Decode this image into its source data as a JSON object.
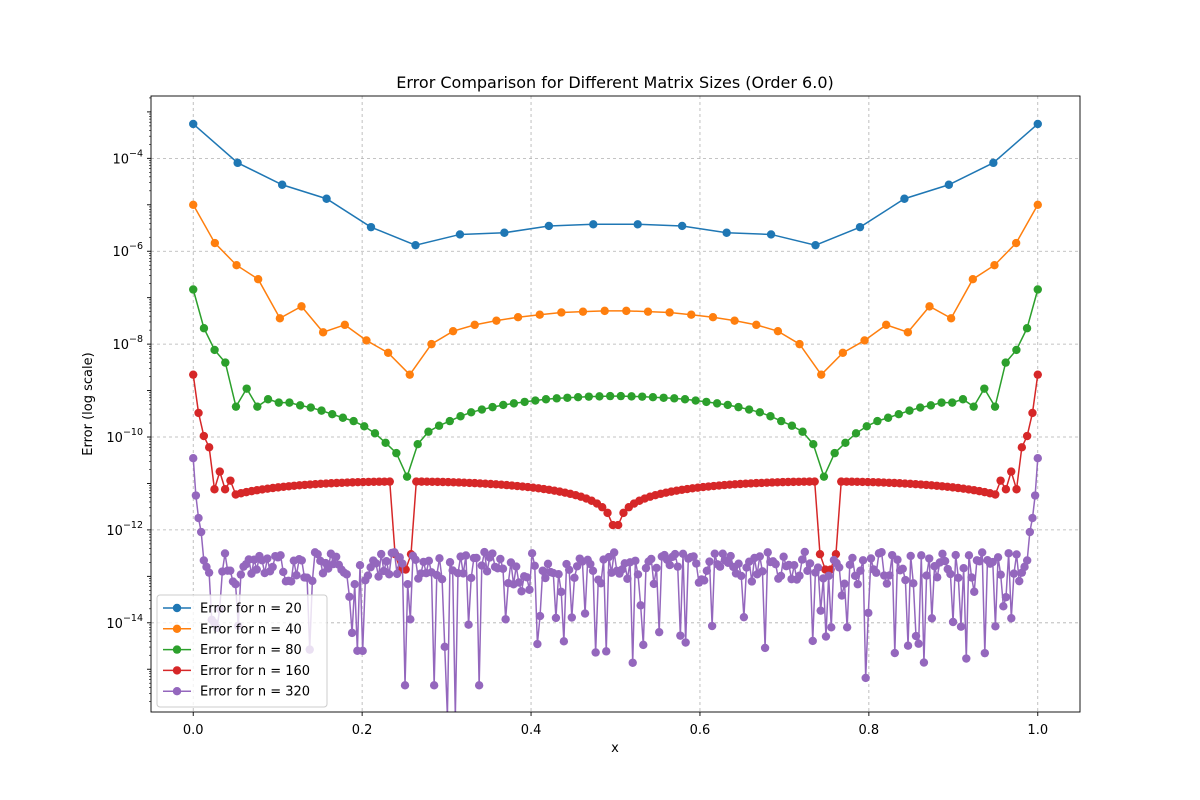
{
  "chart_data": {
    "type": "line",
    "title": "Error Comparison for Different Matrix Sizes (Order 6.0)",
    "xlabel": "x",
    "ylabel": "Error (log scale)",
    "xlim": [
      -0.05,
      1.05
    ],
    "ylim": [
      1.2e-16,
      0.0022
    ],
    "yscale": "log",
    "grid": true,
    "legend_loc": "lower left",
    "x_ticks": [
      0.0,
      0.2,
      0.4,
      0.6,
      0.8,
      1.0
    ],
    "x_tick_labels": [
      "0.0",
      "0.2",
      "0.4",
      "0.6",
      "0.8",
      "1.0"
    ],
    "y_ticks": [
      1e-14,
      1e-12,
      1e-10,
      1e-08,
      1e-06,
      0.0001
    ],
    "y_tick_labels": [
      {
        "base": "10",
        "exp": "−14"
      },
      {
        "base": "10",
        "exp": "−12"
      },
      {
        "base": "10",
        "exp": "−10"
      },
      {
        "base": "10",
        "exp": "−8"
      },
      {
        "base": "10",
        "exp": "−6"
      },
      {
        "base": "10",
        "exp": "−4"
      }
    ],
    "series": [
      {
        "name": "Error for n = 20",
        "color": "#1f77b4",
        "x": [
          0.0,
          0.0526,
          0.1053,
          0.1579,
          0.2105,
          0.2632,
          0.3158,
          0.3684,
          0.4211,
          0.4737,
          0.5263,
          0.5789,
          0.6316,
          0.6842,
          0.7368,
          0.7895,
          0.8421,
          0.8947,
          0.9474,
          1.0
        ],
        "y": [
          0.00055,
          8e-05,
          2.7e-05,
          1.35e-05,
          3.3e-06,
          1.35e-06,
          2.3e-06,
          2.5e-06,
          3.5e-06,
          3.8e-06,
          3.8e-06,
          3.5e-06,
          2.5e-06,
          2.3e-06,
          1.35e-06,
          3.3e-06,
          1.35e-05,
          2.7e-05,
          8e-05,
          0.00055
        ]
      },
      {
        "name": "Error for n = 40",
        "color": "#ff7f0e",
        "x": [
          0.0,
          0.0256,
          0.0513,
          0.0769,
          0.1026,
          0.1282,
          0.1538,
          0.1795,
          0.2051,
          0.2308,
          0.2564,
          0.2821,
          0.3077,
          0.3333,
          0.359,
          0.3846,
          0.4103,
          0.4359,
          0.4615,
          0.4872,
          0.5128,
          0.5385,
          0.5641,
          0.5897,
          0.6154,
          0.641,
          0.6667,
          0.6923,
          0.7179,
          0.7436,
          0.7692,
          0.7949,
          0.8205,
          0.8462,
          0.8718,
          0.8974,
          0.9231,
          0.9487,
          0.9744,
          1.0
        ],
        "y": [
          1e-05,
          1.5e-06,
          5e-07,
          2.5e-07,
          3.6e-08,
          6.5e-08,
          1.8e-08,
          2.6e-08,
          1.2e-08,
          6.5e-09,
          2.2e-09,
          1e-08,
          1.9e-08,
          2.6e-08,
          3.2e-08,
          3.8e-08,
          4.3e-08,
          4.8e-08,
          5e-08,
          5.2e-08,
          5.2e-08,
          5e-08,
          4.8e-08,
          4.3e-08,
          3.8e-08,
          3.2e-08,
          2.6e-08,
          1.9e-08,
          1e-08,
          2.2e-09,
          6.5e-09,
          1.2e-08,
          2.6e-08,
          1.8e-08,
          6.5e-08,
          3.6e-08,
          2.5e-07,
          5e-07,
          1.5e-06,
          1e-05
        ]
      },
      {
        "name": "Error for n = 80",
        "color": "#2ca02c",
        "x": [
          0.0,
          0.0127,
          0.0253,
          0.038,
          0.0506,
          0.0633,
          0.0759,
          0.0886,
          0.1013,
          0.1139,
          0.1266,
          0.1392,
          0.1519,
          0.1646,
          0.1772,
          0.1899,
          0.2025,
          0.2152,
          0.2278,
          0.2405,
          0.2532,
          0.2658,
          0.2785,
          0.2911,
          0.3038,
          0.3165,
          0.3291,
          0.3418,
          0.3544,
          0.3671,
          0.3797,
          0.3924,
          0.4051,
          0.4177,
          0.4304,
          0.443,
          0.4557,
          0.4684,
          0.481,
          0.4937,
          0.5063,
          0.519,
          0.5316,
          0.5443,
          0.557,
          0.5696,
          0.5823,
          0.5949,
          0.6076,
          0.6203,
          0.6329,
          0.6456,
          0.6582,
          0.6709,
          0.6835,
          0.6962,
          0.7089,
          0.7215,
          0.7342,
          0.7468,
          0.7595,
          0.7722,
          0.7848,
          0.7975,
          0.8101,
          0.8228,
          0.8354,
          0.8481,
          0.8608,
          0.8734,
          0.8861,
          0.8987,
          0.9114,
          0.9241,
          0.9367,
          0.9494,
          0.962,
          0.9747,
          0.9873,
          1.0
        ],
        "y": [
          1.5e-07,
          2.2e-08,
          7.5e-09,
          4e-09,
          4.5e-10,
          1.1e-09,
          4.5e-10,
          6.5e-10,
          5.5e-10,
          5.5e-10,
          4.8e-10,
          4.3e-10,
          3.7e-10,
          3.1e-10,
          2.6e-10,
          2.2e-10,
          1.7e-10,
          1.2e-10,
          7.5e-11,
          4.5e-11,
          1.4e-11,
          7e-11,
          1.3e-10,
          1.75e-10,
          2.2e-10,
          2.8e-10,
          3.4e-10,
          3.9e-10,
          4.4e-10,
          4.9e-10,
          5.3e-10,
          5.7e-10,
          6.1e-10,
          6.5e-10,
          6.8e-10,
          7e-10,
          7.2e-10,
          7.4e-10,
          7.5e-10,
          7.6e-10,
          7.6e-10,
          7.5e-10,
          7.4e-10,
          7.2e-10,
          7e-10,
          6.8e-10,
          6.5e-10,
          6.1e-10,
          5.7e-10,
          5.3e-10,
          4.9e-10,
          4.4e-10,
          3.9e-10,
          3.4e-10,
          2.8e-10,
          2.2e-10,
          1.75e-10,
          1.3e-10,
          7e-11,
          1.4e-11,
          4.5e-11,
          7.5e-11,
          1.2e-10,
          1.7e-10,
          2.2e-10,
          2.6e-10,
          3.1e-10,
          3.7e-10,
          4.3e-10,
          4.8e-10,
          5.5e-10,
          5.5e-10,
          6.5e-10,
          4.5e-10,
          1.1e-09,
          4.5e-10,
          4e-09,
          7.5e-09,
          2.2e-08,
          1.5e-07
        ]
      },
      {
        "name": "Error for n = 160",
        "color": "#d62728",
        "y_red": "generated: spikes near edges, dip near x≈0.25 and x≈0.75, hump ~1.1e-11 at center",
        "x": [],
        "y": []
      },
      {
        "name": "Error for n = 320",
        "color": "#9467bd",
        "x": [],
        "y": []
      }
    ]
  }
}
